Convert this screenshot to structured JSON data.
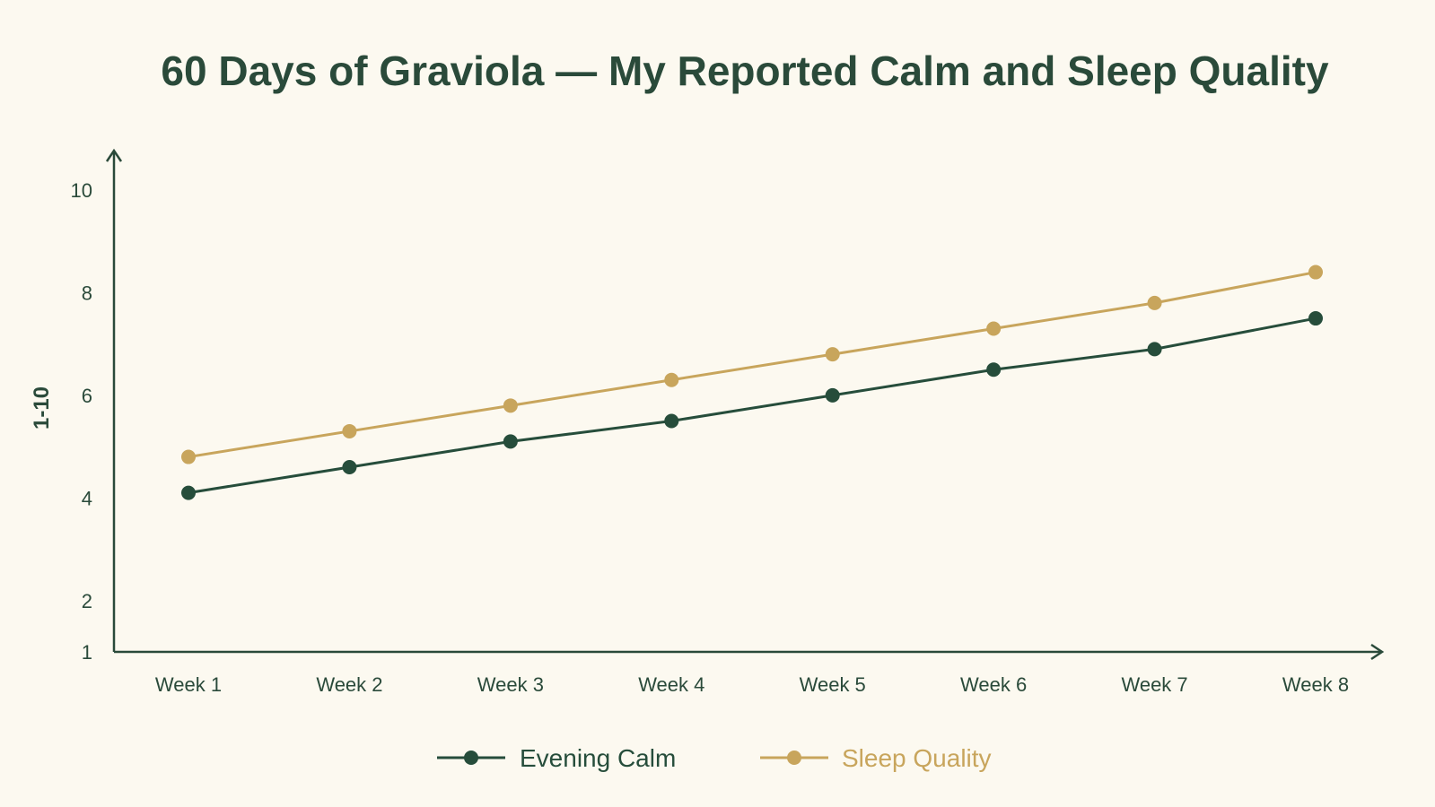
{
  "title": "60 Days of Graviola — My Reported Calm and Sleep Quality",
  "colors": {
    "background": "#fcf9f0",
    "axis": "#2a4a3a",
    "text": "#2a4a3a",
    "evening_calm": "#264d3b",
    "sleep_quality": "#c8a55c"
  },
  "chart_data": {
    "type": "line",
    "title": "60 Days of Graviola — My Reported Calm and Sleep Quality",
    "xlabel": "",
    "ylabel": "1-10",
    "categories": [
      "Week 1",
      "Week 2",
      "Week 3",
      "Week 4",
      "Week 5",
      "Week 6",
      "Week 7",
      "Week 8"
    ],
    "yticks": [
      1,
      2,
      4,
      6,
      8,
      10
    ],
    "ylim": [
      1,
      11
    ],
    "grid": false,
    "legend_position": "bottom-center",
    "series": [
      {
        "name": "Evening Calm",
        "color": "#264d3b",
        "values": [
          4.1,
          4.6,
          5.1,
          5.5,
          6.0,
          6.5,
          6.9,
          7.5
        ]
      },
      {
        "name": "Sleep Quality",
        "color": "#c8a55c",
        "values": [
          4.8,
          5.3,
          5.8,
          6.3,
          6.8,
          7.3,
          7.8,
          8.4
        ]
      }
    ]
  }
}
